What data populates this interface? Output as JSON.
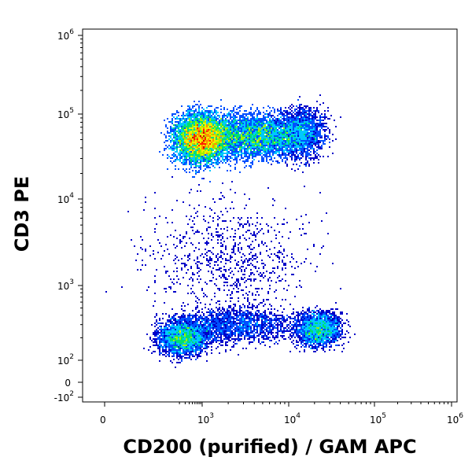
{
  "chart_data": {
    "type": "heatmap",
    "subtype": "flow-cytometry-density-dot-plot",
    "xlabel": "CD200 (purified) / GAM APC",
    "ylabel": "CD3 PE",
    "x_scale": "biexponential",
    "y_scale": "biexponential",
    "xlim": [
      -300,
      1000000
    ],
    "ylim": [
      -300,
      1000000
    ],
    "x_ticks": [
      {
        "base": "0",
        "exp": ""
      },
      {
        "base": "10",
        "exp": "3"
      },
      {
        "base": "10",
        "exp": "4"
      },
      {
        "base": "10",
        "exp": "5"
      },
      {
        "base": "10",
        "exp": "6"
      }
    ],
    "y_ticks": [
      {
        "base": "-10",
        "exp": "2"
      },
      {
        "base": "0",
        "exp": ""
      },
      {
        "base": "10",
        "exp": "2"
      },
      {
        "base": "10",
        "exp": "3"
      },
      {
        "base": "10",
        "exp": "4"
      },
      {
        "base": "10",
        "exp": "5"
      },
      {
        "base": "10",
        "exp": "6"
      }
    ],
    "colormap": [
      "#0000c8",
      "#0050ff",
      "#00c8ff",
      "#00e070",
      "#a0f000",
      "#f0f000",
      "#ff9000",
      "#ff2000",
      "#d00000"
    ],
    "populations": [
      {
        "cd200": 900,
        "cd3": 52000,
        "weight": 1.0
      },
      {
        "cd200": 4000,
        "cd3": 55000,
        "weight": 0.75
      },
      {
        "cd200": 14000,
        "cd3": 60000,
        "weight": 0.4
      },
      {
        "cd200": 250,
        "cd3": 200,
        "weight": 0.5
      },
      {
        "cd200": 22000,
        "cd3": 260,
        "weight": 0.45
      },
      {
        "cd200": 2500,
        "cd3": 300,
        "weight": 0.35
      },
      {
        "cd200": 2000,
        "cd3": 2000,
        "weight": 0.12
      }
    ],
    "grid": false,
    "legend": "none"
  }
}
